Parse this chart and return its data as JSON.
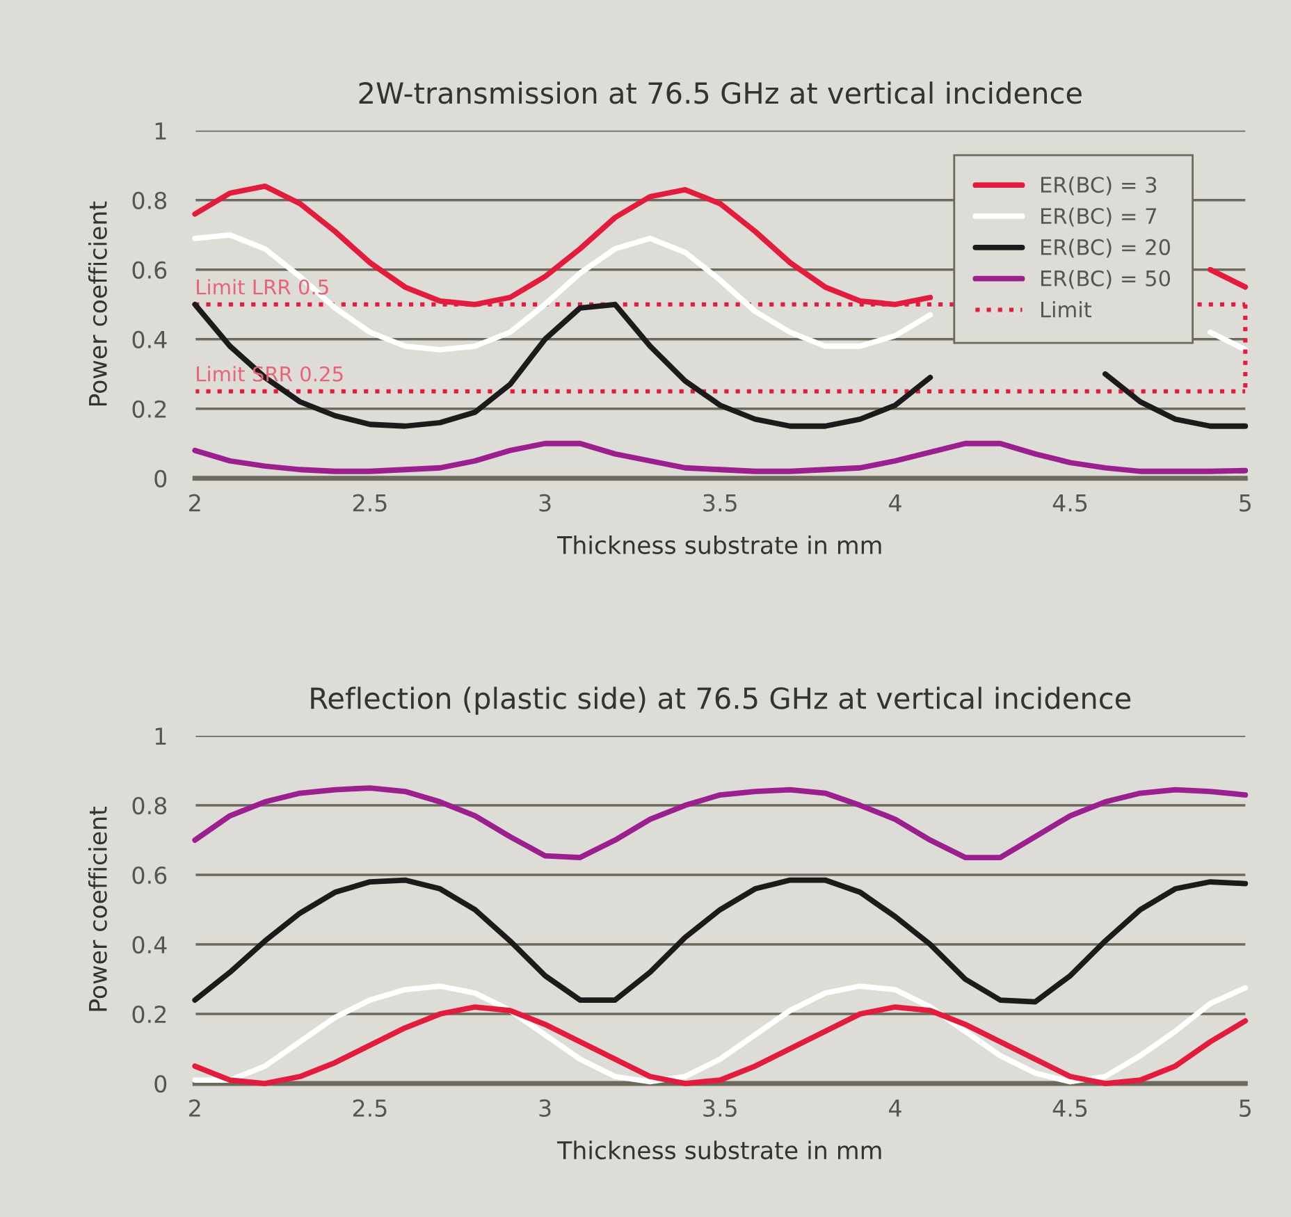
{
  "chart_data": [
    {
      "type": "line",
      "title": "2W-transmission at 76.5 GHz at vertical incidence",
      "xlabel": "Thickness substrate in mm",
      "ylabel": "Power coefficient",
      "xlim": [
        2,
        5
      ],
      "xticks": [
        2,
        2.5,
        3,
        3.5,
        4,
        4.5,
        5
      ],
      "ylim": [
        0,
        1
      ],
      "yticks": [
        0,
        0.2,
        0.4,
        0.6,
        0.8,
        1
      ],
      "grid": "y",
      "legend": "top right",
      "marker": "none",
      "line_style": "solid",
      "x": [
        2.0,
        2.1,
        2.2,
        2.3,
        2.4,
        2.5,
        2.6,
        2.7,
        2.8,
        2.9,
        3.0,
        3.1,
        3.2,
        3.3,
        3.4,
        3.5,
        3.6,
        3.7,
        3.8,
        3.9,
        4.0,
        4.1,
        4.2,
        4.3,
        4.4,
        4.5,
        4.6,
        4.7,
        4.8,
        4.9,
        5.0
      ],
      "series": [
        {
          "name": "ER(BC) = 3",
          "color": "#e31b3d",
          "values": [
            0.76,
            0.82,
            0.84,
            0.79,
            0.71,
            0.62,
            0.55,
            0.51,
            0.5,
            0.52,
            0.58,
            0.66,
            0.75,
            0.81,
            0.83,
            0.79,
            0.71,
            0.62,
            0.55,
            0.51,
            0.5,
            0.52,
            null,
            null,
            null,
            null,
            null,
            null,
            null,
            0.6,
            0.55
          ]
        },
        {
          "name": "ER(BC) = 7",
          "color": "#ffffff",
          "values": [
            0.69,
            0.7,
            0.66,
            0.58,
            0.49,
            0.42,
            0.38,
            0.37,
            0.38,
            0.42,
            0.5,
            0.59,
            0.66,
            0.69,
            0.65,
            0.57,
            0.48,
            0.42,
            0.38,
            0.38,
            0.41,
            0.47,
            null,
            null,
            null,
            null,
            null,
            null,
            null,
            0.42,
            0.37
          ]
        },
        {
          "name": "ER(BC) = 20",
          "color": "#1c1a1b",
          "values": [
            0.5,
            0.38,
            0.29,
            0.22,
            0.18,
            0.155,
            0.15,
            0.16,
            0.19,
            0.27,
            0.4,
            0.49,
            0.5,
            0.38,
            0.28,
            0.21,
            0.17,
            0.15,
            0.15,
            0.17,
            0.21,
            0.29,
            null,
            null,
            null,
            null,
            0.3,
            0.22,
            0.17,
            0.15,
            0.15
          ]
        },
        {
          "name": "ER(BC) = 50",
          "color": "#9b1f8f",
          "values": [
            0.08,
            0.05,
            0.035,
            0.025,
            0.02,
            0.02,
            0.025,
            0.03,
            0.05,
            0.08,
            0.1,
            0.1,
            0.07,
            0.05,
            0.03,
            0.025,
            0.02,
            0.02,
            0.025,
            0.03,
            0.05,
            0.075,
            0.1,
            0.1,
            0.07,
            0.045,
            0.03,
            0.02,
            0.02,
            0.02,
            0.022
          ]
        },
        {
          "name": "Limit",
          "color": "#e31b3d",
          "line_style": "dotted",
          "x": [
            5,
            5
          ],
          "values": [
            0.5,
            0.25
          ]
        }
      ],
      "ref_lines": [
        {
          "axis": "y",
          "value": 0.5,
          "label": "Limit LRR 0.5",
          "color": "#e31b3d",
          "line_style": "dotted"
        },
        {
          "axis": "y",
          "value": 0.25,
          "label": "Limit SRR 0.25",
          "color": "#e31b3d",
          "line_style": "dotted"
        }
      ]
    },
    {
      "type": "line",
      "title": "Reflection (plastic side) at 76.5 GHz at vertical incidence",
      "xlabel": "Thickness substrate in mm",
      "ylabel": "Power coefficient",
      "xlim": [
        2,
        5
      ],
      "xticks": [
        2,
        2.5,
        3,
        3.5,
        4,
        4.5,
        5
      ],
      "ylim": [
        0,
        1
      ],
      "yticks": [
        0,
        0.2,
        0.4,
        0.6,
        0.8,
        1
      ],
      "grid": "y",
      "marker": "none",
      "line_style": "solid",
      "x": [
        2.0,
        2.1,
        2.2,
        2.3,
        2.4,
        2.5,
        2.6,
        2.7,
        2.8,
        2.9,
        3.0,
        3.1,
        3.2,
        3.3,
        3.4,
        3.5,
        3.6,
        3.7,
        3.8,
        3.9,
        4.0,
        4.1,
        4.2,
        4.3,
        4.4,
        4.5,
        4.6,
        4.7,
        4.8,
        4.9,
        5.0
      ],
      "series": [
        {
          "color": "#9b1f8f",
          "values": [
            0.7,
            0.77,
            0.81,
            0.835,
            0.845,
            0.85,
            0.84,
            0.81,
            0.77,
            0.71,
            0.655,
            0.65,
            0.7,
            0.76,
            0.8,
            0.83,
            0.84,
            0.845,
            0.835,
            0.8,
            0.76,
            0.7,
            0.65,
            0.65,
            0.71,
            0.77,
            0.81,
            0.835,
            0.845,
            0.84,
            0.83
          ]
        },
        {
          "color": "#1c1a1b",
          "values": [
            0.24,
            0.32,
            0.41,
            0.49,
            0.55,
            0.58,
            0.585,
            0.56,
            0.5,
            0.41,
            0.31,
            0.24,
            0.24,
            0.32,
            0.42,
            0.5,
            0.56,
            0.585,
            0.585,
            0.55,
            0.48,
            0.4,
            0.3,
            0.24,
            0.235,
            0.31,
            0.41,
            0.5,
            0.56,
            0.58,
            0.575
          ]
        },
        {
          "color": "#ffffff",
          "values": [
            0.01,
            0.01,
            0.05,
            0.12,
            0.19,
            0.24,
            0.27,
            0.28,
            0.26,
            0.21,
            0.14,
            0.07,
            0.02,
            0.005,
            0.02,
            0.07,
            0.14,
            0.21,
            0.26,
            0.28,
            0.27,
            0.22,
            0.15,
            0.08,
            0.03,
            0.005,
            0.02,
            0.08,
            0.15,
            0.23,
            0.275
          ]
        },
        {
          "color": "#e31b3d",
          "values": [
            0.05,
            0.01,
            0.0,
            0.02,
            0.06,
            0.11,
            0.16,
            0.2,
            0.22,
            0.21,
            0.17,
            0.12,
            0.07,
            0.02,
            0.0,
            0.01,
            0.05,
            0.1,
            0.15,
            0.2,
            0.22,
            0.21,
            0.17,
            0.12,
            0.07,
            0.02,
            0.0,
            0.01,
            0.05,
            0.12,
            0.18
          ]
        }
      ]
    }
  ]
}
